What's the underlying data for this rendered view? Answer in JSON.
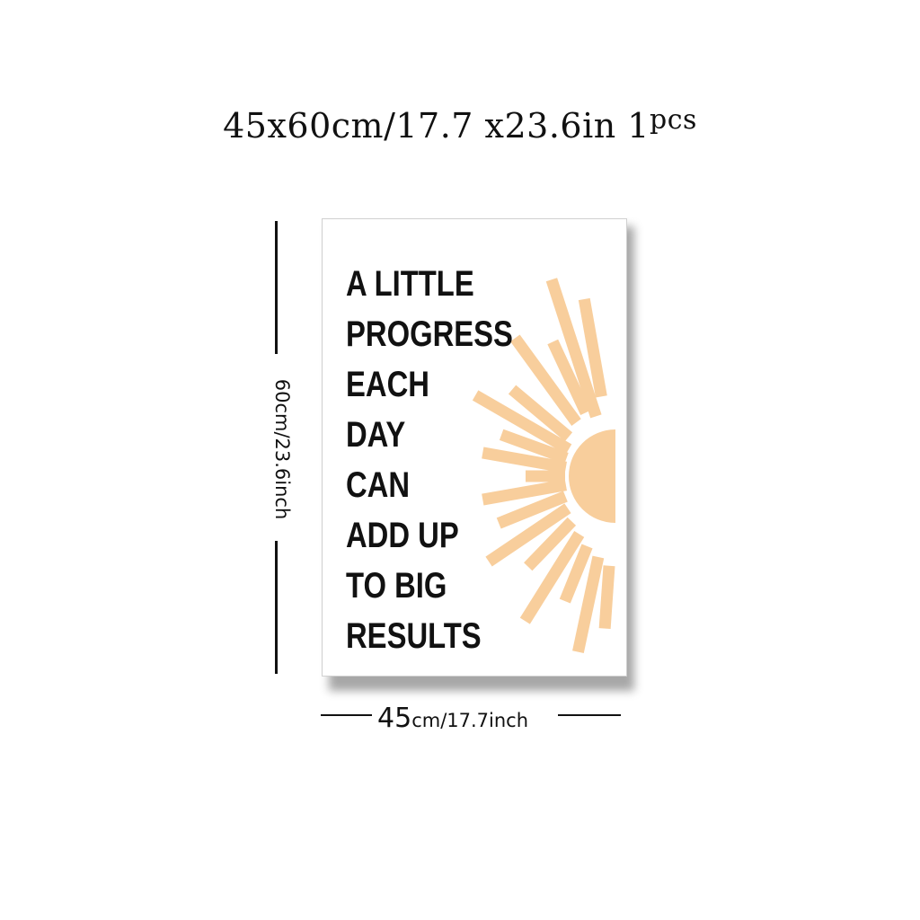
{
  "header": {
    "size_text": "45x60cm/17.7 x23.6in 1",
    "qty_suffix": "pcs"
  },
  "poster": {
    "quote_lines": [
      "A LITTLE",
      "PROGRESS",
      "EACH",
      "DAY",
      "CAN",
      "ADD UP",
      "TO BIG",
      "RESULTS"
    ],
    "sun_color": "#F8CE9C",
    "text_color": "#111111"
  },
  "dimensions": {
    "height_label": "60cm/23.6inch",
    "width_number": "45",
    "width_unit": "cm/17.7inch"
  }
}
